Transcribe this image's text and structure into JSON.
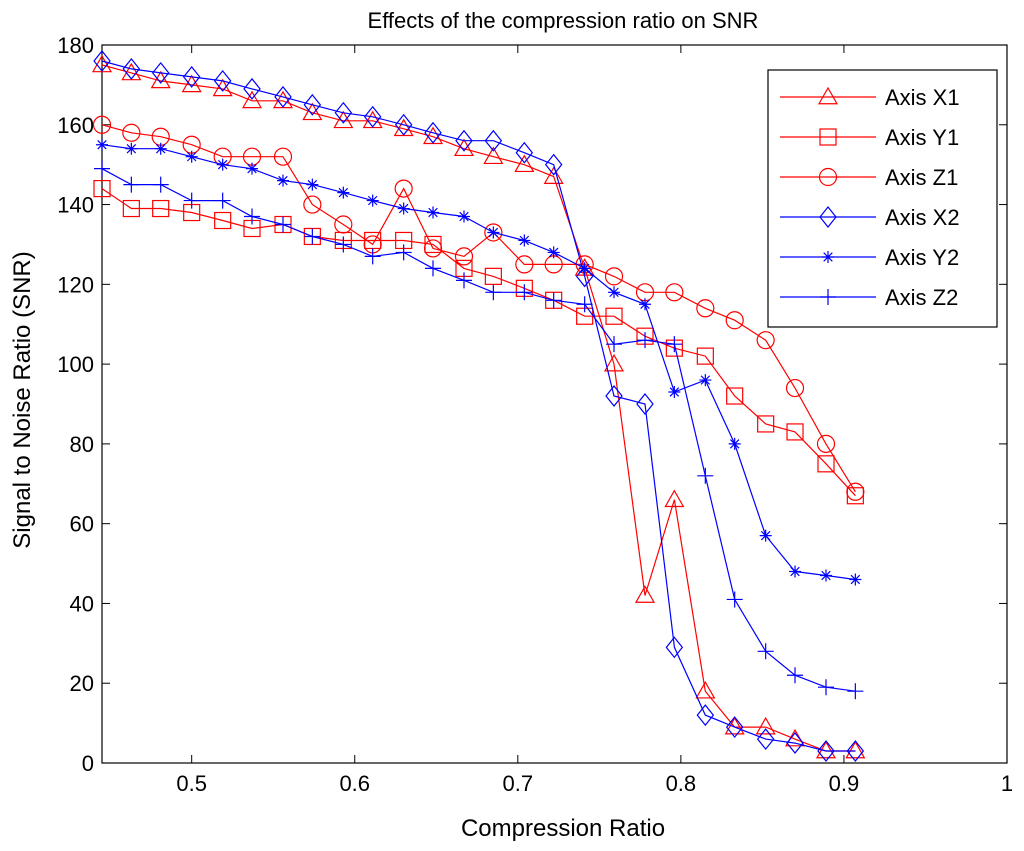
{
  "chart_data": {
    "type": "line",
    "title": "Effects of the compression ratio on SNR",
    "xlabel": "Compression Ratio",
    "ylabel": "Signal to Noise Ratio (SNR)",
    "xlim": [
      0.445,
      1.0
    ],
    "ylim": [
      0,
      180
    ],
    "xticks": [
      0.5,
      0.6,
      0.7,
      0.8,
      0.9,
      1.0
    ],
    "xtick_labels": [
      "0.5",
      "0.6",
      "0.7",
      "0.8",
      "0.9",
      "1"
    ],
    "yticks": [
      0,
      20,
      40,
      60,
      80,
      100,
      120,
      140,
      160,
      180
    ],
    "ytick_labels": [
      "0",
      "20",
      "40",
      "60",
      "80",
      "100",
      "120",
      "140",
      "160",
      "180"
    ],
    "grid": false,
    "legend_position": "top-right",
    "colors": {
      "red": "#ff0000",
      "blue": "#0000ff",
      "axis": "#000000"
    },
    "series": [
      {
        "name": "Axis X1",
        "color": "#ff0000",
        "marker": "triangle",
        "x": [
          0.445,
          0.463,
          0.481,
          0.5,
          0.519,
          0.537,
          0.556,
          0.574,
          0.593,
          0.611,
          0.63,
          0.648,
          0.667,
          0.685,
          0.704,
          0.722,
          0.741,
          0.759,
          0.778,
          0.796,
          0.815,
          0.833,
          0.852,
          0.87,
          0.889,
          0.907
        ],
        "y": [
          175,
          173,
          171,
          170,
          169,
          166,
          166,
          163,
          161,
          161,
          159,
          157,
          154,
          152,
          150,
          147,
          124,
          100,
          42,
          66,
          18,
          9,
          9,
          6,
          3,
          3
        ]
      },
      {
        "name": "Axis Y1",
        "color": "#ff0000",
        "marker": "square",
        "x": [
          0.445,
          0.463,
          0.481,
          0.5,
          0.519,
          0.537,
          0.556,
          0.574,
          0.593,
          0.611,
          0.63,
          0.648,
          0.667,
          0.685,
          0.704,
          0.722,
          0.741,
          0.759,
          0.778,
          0.796,
          0.815,
          0.833,
          0.852,
          0.87,
          0.889,
          0.907
        ],
        "y": [
          144,
          139,
          139,
          138,
          136,
          134,
          135,
          132,
          131,
          131,
          131,
          130,
          124,
          122,
          119,
          116,
          112,
          112,
          107,
          104,
          102,
          92,
          85,
          83,
          75,
          67
        ]
      },
      {
        "name": "Axis Z1",
        "color": "#ff0000",
        "marker": "circle",
        "x": [
          0.445,
          0.463,
          0.481,
          0.5,
          0.519,
          0.537,
          0.556,
          0.574,
          0.593,
          0.611,
          0.63,
          0.648,
          0.667,
          0.685,
          0.704,
          0.722,
          0.741,
          0.759,
          0.778,
          0.796,
          0.815,
          0.833,
          0.852,
          0.87,
          0.889,
          0.907
        ],
        "y": [
          160,
          158,
          157,
          155,
          152,
          152,
          152,
          140,
          135,
          130,
          144,
          129,
          127,
          133,
          125,
          125,
          125,
          122,
          118,
          118,
          114,
          111,
          106,
          94,
          80,
          68
        ]
      },
      {
        "name": "Axis X2",
        "color": "#0000ff",
        "marker": "diamond",
        "x": [
          0.445,
          0.463,
          0.481,
          0.5,
          0.519,
          0.537,
          0.556,
          0.574,
          0.593,
          0.611,
          0.63,
          0.648,
          0.667,
          0.685,
          0.704,
          0.722,
          0.741,
          0.759,
          0.778,
          0.796,
          0.815,
          0.833,
          0.852,
          0.87,
          0.889,
          0.907
        ],
        "y": [
          176,
          174,
          173,
          172,
          171,
          169,
          167,
          165,
          163,
          162,
          160,
          158,
          156,
          156,
          153,
          150,
          122,
          92,
          90,
          29,
          12,
          9,
          6,
          5,
          3,
          3
        ]
      },
      {
        "name": "Axis Y2",
        "color": "#0000ff",
        "marker": "asterisk",
        "x": [
          0.445,
          0.463,
          0.481,
          0.5,
          0.519,
          0.537,
          0.556,
          0.574,
          0.593,
          0.611,
          0.63,
          0.648,
          0.667,
          0.685,
          0.704,
          0.722,
          0.741,
          0.759,
          0.778,
          0.796,
          0.815,
          0.833,
          0.852,
          0.87,
          0.889,
          0.907
        ],
        "y": [
          155,
          154,
          154,
          152,
          150,
          149,
          146,
          145,
          143,
          141,
          139,
          138,
          137,
          133,
          131,
          128,
          124,
          118,
          115,
          93,
          96,
          80,
          57,
          48,
          47,
          46
        ]
      },
      {
        "name": "Axis Z2",
        "color": "#0000ff",
        "marker": "plus",
        "x": [
          0.445,
          0.463,
          0.481,
          0.5,
          0.519,
          0.537,
          0.556,
          0.574,
          0.593,
          0.611,
          0.63,
          0.648,
          0.667,
          0.685,
          0.704,
          0.722,
          0.741,
          0.759,
          0.778,
          0.796,
          0.815,
          0.833,
          0.852,
          0.87,
          0.889,
          0.907
        ],
        "y": [
          149,
          145,
          145,
          141,
          141,
          137,
          135,
          132,
          130,
          127,
          128,
          124,
          121,
          118,
          118,
          116,
          115,
          105,
          106,
          105,
          72,
          41,
          28,
          22,
          19,
          18
        ]
      }
    ]
  }
}
